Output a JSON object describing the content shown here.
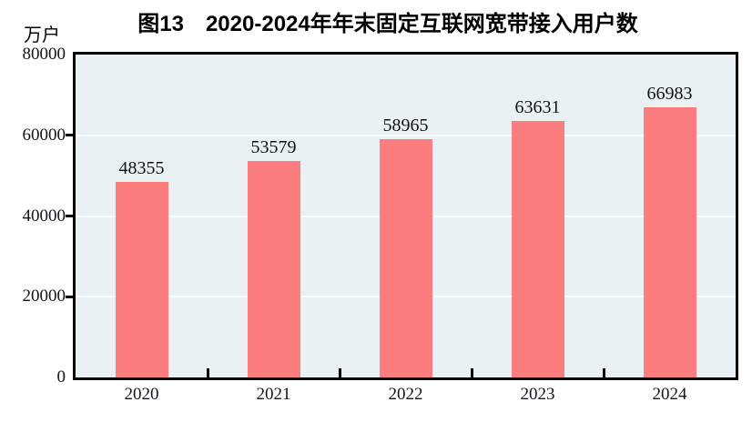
{
  "header": {
    "title": "图13　2020-2024年年末固定互联网宽带接入用户数",
    "unit_label": "万户"
  },
  "chart_data": {
    "type": "bar",
    "title": "图13　2020-2024年年末固定互联网宽带接入用户数",
    "ylabel": "万户",
    "xlabel": "",
    "categories": [
      "2020",
      "2021",
      "2022",
      "2023",
      "2024"
    ],
    "values": [
      48355,
      53579,
      58965,
      63631,
      66983
    ],
    "ylim": [
      0,
      80000
    ],
    "yticks": [
      0,
      20000,
      40000,
      60000,
      80000
    ],
    "grid": "horizontal",
    "legend_position": "none",
    "colors": {
      "bar": "#FB7D7D",
      "plot_background": "#E9F1F5",
      "gridline": "#F9FCFD",
      "axis": "#000000",
      "text": "#14141e"
    }
  }
}
